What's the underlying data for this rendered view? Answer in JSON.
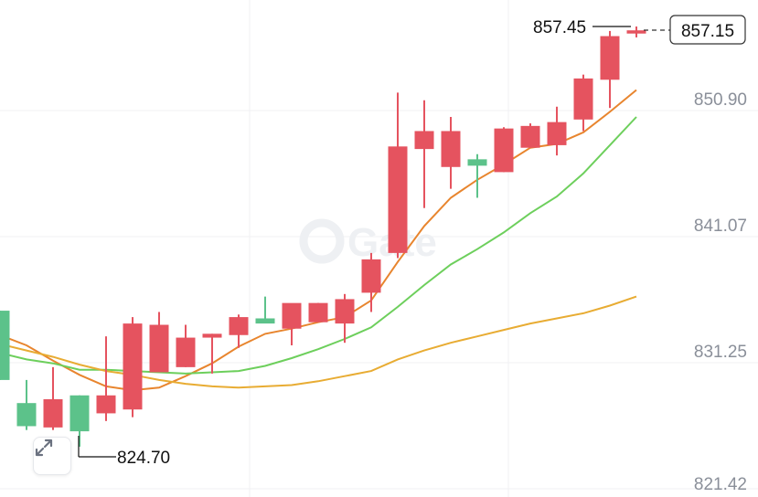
{
  "chart_data": {
    "type": "candlestick",
    "y_axis": {
      "position": "right",
      "ticks": [
        "850.90",
        "841.07",
        "831.25",
        "821.42"
      ]
    },
    "ylim": [
      821.42,
      857.45
    ],
    "grid": true,
    "candles": [
      {
        "o": 835.3,
        "h": 835.3,
        "l": 829.9,
        "c": 829.9
      },
      {
        "o": 828.1,
        "h": 829.9,
        "l": 826.0,
        "c": 826.3
      },
      {
        "o": 826.2,
        "h": 830.9,
        "l": 826.0,
        "c": 828.4
      },
      {
        "o": 828.7,
        "h": 828.7,
        "l": 824.7,
        "c": 825.9
      },
      {
        "o": 827.3,
        "h": 833.3,
        "l": 826.7,
        "c": 828.7
      },
      {
        "o": 827.6,
        "h": 834.8,
        "l": 827.0,
        "c": 834.3
      },
      {
        "o": 830.5,
        "h": 835.2,
        "l": 830.5,
        "c": 834.2
      },
      {
        "o": 830.9,
        "h": 834.2,
        "l": 830.9,
        "c": 833.2
      },
      {
        "o": 833.2,
        "h": 833.5,
        "l": 830.4,
        "c": 833.5
      },
      {
        "o": 833.4,
        "h": 835.0,
        "l": 832.4,
        "c": 834.8
      },
      {
        "o": 834.7,
        "h": 836.4,
        "l": 834.4,
        "c": 834.3
      },
      {
        "o": 833.9,
        "h": 835.8,
        "l": 832.6,
        "c": 835.9
      },
      {
        "o": 834.4,
        "h": 835.9,
        "l": 834.4,
        "c": 835.9
      },
      {
        "o": 834.3,
        "h": 836.6,
        "l": 832.8,
        "c": 836.2
      },
      {
        "o": 836.7,
        "h": 839.8,
        "l": 835.2,
        "c": 839.3
      },
      {
        "o": 839.8,
        "h": 852.3,
        "l": 839.4,
        "c": 848.1
      },
      {
        "o": 847.9,
        "h": 851.7,
        "l": 843.3,
        "c": 849.3
      },
      {
        "o": 846.5,
        "h": 850.4,
        "l": 844.8,
        "c": 849.3
      },
      {
        "o": 847.1,
        "h": 847.5,
        "l": 844.1,
        "c": 846.6
      },
      {
        "o": 846.1,
        "h": 849.6,
        "l": 846.1,
        "c": 849.5
      },
      {
        "o": 848.0,
        "h": 849.9,
        "l": 848.0,
        "c": 849.7
      },
      {
        "o": 848.2,
        "h": 851.2,
        "l": 847.4,
        "c": 850.0
      },
      {
        "o": 850.2,
        "h": 853.7,
        "l": 849.3,
        "c": 853.4
      },
      {
        "o": 853.3,
        "h": 857.1,
        "l": 851.1,
        "c": 856.7
      },
      {
        "o": 856.9,
        "h": 857.45,
        "l": 856.6,
        "c": 857.15
      }
    ],
    "moving_averages": [
      {
        "color": "#e8852e",
        "values": [
          833.4,
          832.6,
          831.4,
          830.3,
          829.4,
          829.1,
          829.3,
          830.2,
          831.2,
          832.5,
          833.5,
          833.9,
          834.4,
          834.8,
          836.1,
          839.1,
          841.9,
          844.1,
          845.5,
          846.7,
          848.0,
          848.3,
          849.2,
          850.8,
          852.5
        ]
      },
      {
        "color": "#6dcf5c",
        "values": [
          832.0,
          831.5,
          831.2,
          830.7,
          830.7,
          830.6,
          830.5,
          830.4,
          830.5,
          830.6,
          831.0,
          831.6,
          832.3,
          833.1,
          834.0,
          835.6,
          837.3,
          838.9,
          840.1,
          841.4,
          842.9,
          844.2,
          846.0,
          848.2,
          850.4
        ]
      },
      {
        "color": "#e8ac33",
        "values": [
          832.7,
          832.2,
          831.7,
          831.1,
          830.6,
          830.3,
          829.9,
          829.6,
          829.4,
          829.3,
          829.4,
          829.5,
          829.8,
          830.2,
          830.6,
          831.5,
          832.2,
          832.8,
          833.3,
          833.8,
          834.3,
          834.7,
          835.1,
          835.7,
          836.4
        ]
      }
    ],
    "annotations": {
      "high_label": "857.45",
      "low_label": "824.70",
      "current_price": "857.15"
    },
    "up_color": "#e5535f",
    "down_color": "#5cc28a"
  },
  "watermark": "Gate",
  "expand_icon": "expand-arrows-icon"
}
